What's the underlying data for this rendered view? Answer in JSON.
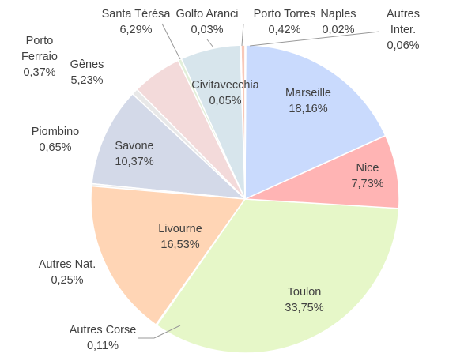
{
  "chart_data": {
    "type": "pie",
    "categories": [
      "Naples",
      "Autres Inter.",
      "Marseille",
      "Nice",
      "Toulon",
      "Autres Corse",
      "Livourne",
      "Autres Nat.",
      "Savone",
      "Piombino",
      "Gênes",
      "Porto Ferraio",
      "Santa Térésa",
      "Golfo Aranci",
      "Civitavecchia",
      "Porto Torres"
    ],
    "values": [
      0.02,
      0.06,
      18.16,
      7.73,
      33.75,
      0.11,
      16.53,
      0.25,
      10.37,
      0.65,
      5.23,
      0.37,
      6.29,
      0.03,
      0.05,
      0.42
    ],
    "value_labels": [
      "0,02%",
      "0,06%",
      "18,16%",
      "7,73%",
      "33,75%",
      "0,11%",
      "16,53%",
      "0,25%",
      "10,37%",
      "0,65%",
      "5,23%",
      "0,37%",
      "6,29%",
      "0,03%",
      "0,05%",
      "0,42%"
    ],
    "colors": [
      "#f4b183",
      "#d9d9d9",
      "#c9dafd",
      "#ffb4b4",
      "#e6f7c8",
      "#9dc3e6",
      "#ffd5b5",
      "#eeeeee",
      "#d3d9e8",
      "#e8e8e8",
      "#f3dada",
      "#e2efd9",
      "#d7e5ec",
      "#cfd8dc",
      "#dde8f0",
      "#f8c8b8"
    ]
  }
}
